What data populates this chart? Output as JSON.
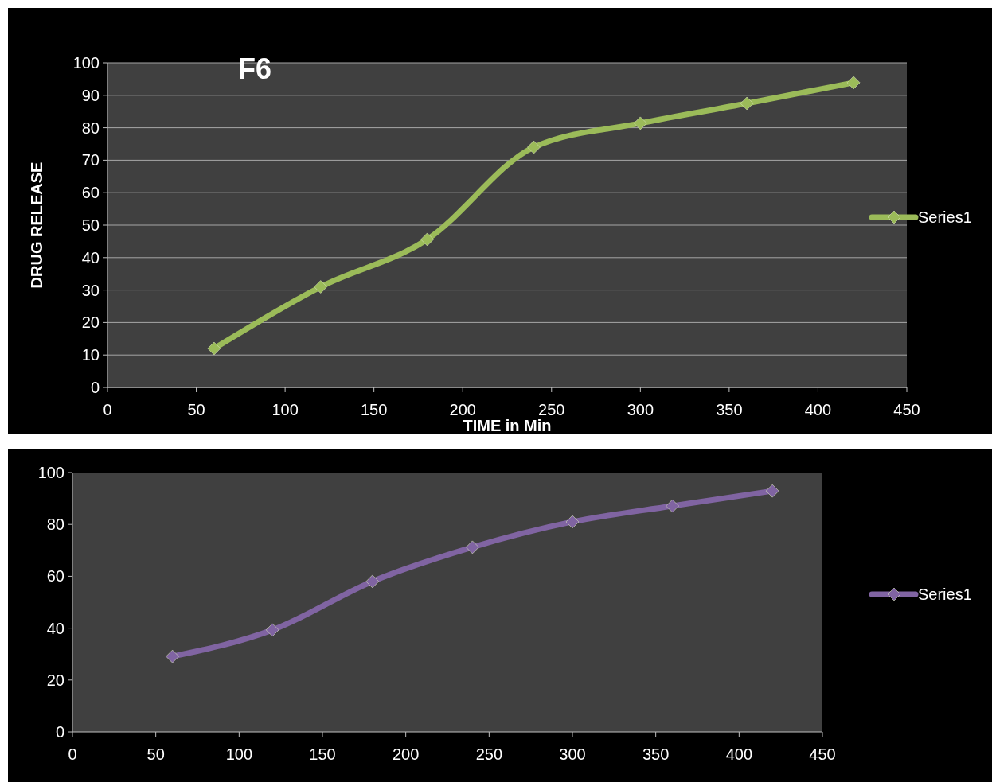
{
  "chart_data": [
    {
      "type": "line",
      "title": "F6",
      "xlabel": "TIME in Min",
      "ylabel": "DRUG RELEASE",
      "x": [
        60,
        120,
        180,
        240,
        300,
        360,
        420
      ],
      "series": [
        {
          "name": "Series1",
          "color": "#9bbb59",
          "values": [
            12,
            31,
            45.6,
            74,
            81.4,
            87.5,
            93.9
          ]
        }
      ],
      "xlim": [
        0,
        450
      ],
      "xticks": [
        0,
        50,
        100,
        150,
        200,
        250,
        300,
        350,
        400,
        450
      ],
      "ylim": [
        0,
        100
      ],
      "yticks": [
        0,
        10,
        20,
        30,
        40,
        50,
        60,
        70,
        80,
        90,
        100
      ],
      "grid": "y",
      "legend": "right",
      "marker": "diamond",
      "line_style": "solid"
    },
    {
      "type": "line",
      "x": [
        60,
        120,
        180,
        240,
        300,
        360,
        420
      ],
      "series": [
        {
          "name": "Series1",
          "color": "#8064a2",
          "values": [
            29.1,
            39.3,
            58,
            71.2,
            81,
            87.1,
            92.9
          ]
        }
      ],
      "xlim": [
        0,
        450
      ],
      "xticks": [
        0,
        50,
        100,
        150,
        200,
        250,
        300,
        350,
        400,
        450
      ],
      "ylim": [
        0,
        100
      ],
      "yticks": [
        0,
        20,
        40,
        60,
        80,
        100
      ],
      "legend": "right",
      "marker": "diamond",
      "line_style": "solid"
    }
  ]
}
